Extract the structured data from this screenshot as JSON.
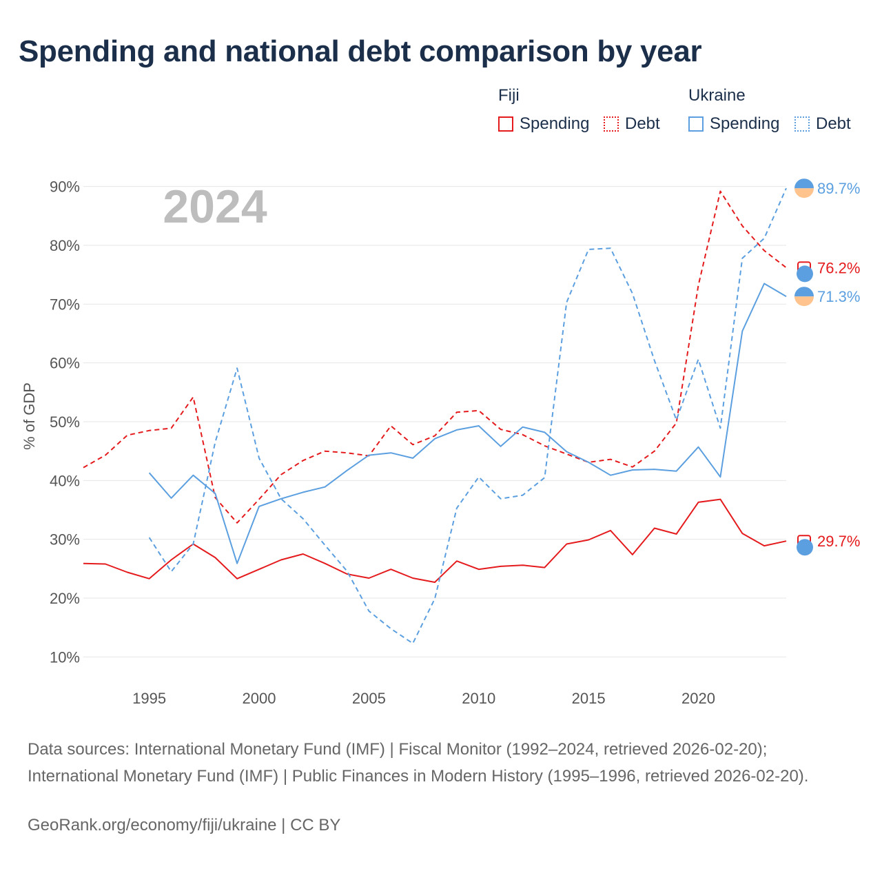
{
  "title": "Spending and national debt comparison by year",
  "legend": {
    "fiji": {
      "label": "Fiji",
      "spending": "Spending",
      "debt": "Debt",
      "color": "#e41a1c"
    },
    "ukraine": {
      "label": "Ukraine",
      "spending": "Spending",
      "debt": "Debt",
      "color": "#5b9fe0"
    }
  },
  "chart_data": {
    "type": "line",
    "year_label": "2024",
    "ylabel": "% of GDP",
    "ylim": [
      5,
      95
    ],
    "xlim": [
      1992,
      2024
    ],
    "yticks": [
      10,
      20,
      30,
      40,
      50,
      60,
      70,
      80,
      90
    ],
    "ytick_labels": [
      "10%",
      "20%",
      "30%",
      "40%",
      "50%",
      "60%",
      "70%",
      "80%",
      "90%"
    ],
    "xticks": [
      1995,
      2000,
      2005,
      2010,
      2015,
      2020
    ],
    "xtick_labels": [
      "1995",
      "2000",
      "2005",
      "2010",
      "2015",
      "2020"
    ],
    "series": [
      {
        "name": "Fiji Debt",
        "country": "Fiji",
        "metric": "Debt",
        "color": "#e41a1c",
        "dashed": true,
        "end_label": "76.2%",
        "end_value": 76.2,
        "x": [
          1992,
          1993,
          1994,
          1995,
          1996,
          1997,
          1998,
          1999,
          2000,
          2001,
          2002,
          2003,
          2004,
          2005,
          2006,
          2007,
          2008,
          2009,
          2010,
          2011,
          2012,
          2013,
          2014,
          2015,
          2016,
          2017,
          2018,
          2019,
          2020,
          2021,
          2022,
          2023,
          2024
        ],
        "y": [
          42.2,
          44.3,
          47.7,
          48.5,
          48.9,
          54.2,
          37.1,
          32.8,
          36.8,
          41.0,
          43.4,
          45.0,
          44.7,
          44.2,
          49.3,
          46.1,
          47.6,
          51.6,
          51.9,
          48.7,
          47.8,
          45.9,
          44.5,
          43.1,
          43.6,
          42.3,
          45.0,
          49.8,
          73.2,
          89.2,
          83.3,
          79.1,
          76.2
        ]
      },
      {
        "name": "Fiji Spending",
        "country": "Fiji",
        "metric": "Spending",
        "color": "#e41a1c",
        "dashed": false,
        "end_label": "29.7%",
        "end_value": 29.7,
        "x": [
          1992,
          1993,
          1994,
          1995,
          1996,
          1997,
          1998,
          1999,
          2000,
          2001,
          2002,
          2003,
          2004,
          2005,
          2006,
          2007,
          2008,
          2009,
          2010,
          2011,
          2012,
          2013,
          2014,
          2015,
          2016,
          2017,
          2018,
          2019,
          2020,
          2021,
          2022,
          2023,
          2024
        ],
        "y": [
          25.9,
          25.8,
          24.4,
          23.3,
          26.5,
          29.2,
          26.9,
          23.3,
          24.9,
          26.5,
          27.5,
          25.9,
          24.1,
          23.4,
          24.9,
          23.4,
          22.7,
          26.3,
          24.9,
          25.4,
          25.6,
          25.2,
          29.2,
          29.9,
          31.5,
          27.4,
          31.9,
          30.9,
          36.3,
          36.8,
          31.0,
          28.9,
          29.7
        ]
      },
      {
        "name": "Ukraine Debt",
        "country": "Ukraine",
        "metric": "Debt",
        "color": "#5b9fe0",
        "dashed": true,
        "end_label": "89.7%",
        "end_value": 89.7,
        "x": [
          1995,
          1996,
          1997,
          1998,
          1999,
          2000,
          2001,
          2002,
          2003,
          2004,
          2005,
          2006,
          2007,
          2008,
          2009,
          2010,
          2011,
          2012,
          2013,
          2014,
          2015,
          2016,
          2017,
          2018,
          2019,
          2020,
          2021,
          2022,
          2023,
          2024
        ],
        "y": [
          30.3,
          24.5,
          29.2,
          46.5,
          59.1,
          43.8,
          36.9,
          33.5,
          29.0,
          24.6,
          17.8,
          14.8,
          12.3,
          19.9,
          35.3,
          40.6,
          36.9,
          37.5,
          40.5,
          70.3,
          79.3,
          79.5,
          71.8,
          60.4,
          50.3,
          60.6,
          48.9,
          77.8,
          81.2,
          89.7
        ]
      },
      {
        "name": "Ukraine Spending",
        "country": "Ukraine",
        "metric": "Spending",
        "color": "#5b9fe0",
        "dashed": false,
        "end_label": "71.3%",
        "end_value": 71.3,
        "x": [
          1995,
          1996,
          1997,
          1998,
          1999,
          2000,
          2001,
          2002,
          2003,
          2004,
          2005,
          2006,
          2007,
          2008,
          2009,
          2010,
          2011,
          2012,
          2013,
          2014,
          2015,
          2016,
          2017,
          2018,
          2019,
          2020,
          2021,
          2022,
          2023,
          2024
        ],
        "y": [
          41.3,
          37.0,
          40.9,
          37.8,
          25.9,
          35.6,
          36.9,
          38.0,
          38.9,
          41.7,
          44.3,
          44.7,
          43.8,
          47.1,
          48.6,
          49.3,
          45.8,
          49.1,
          48.2,
          44.9,
          43.1,
          40.9,
          41.8,
          41.9,
          41.6,
          45.7,
          40.6,
          65.4,
          73.5,
          71.3
        ]
      }
    ]
  },
  "footer": {
    "sources": "Data sources: International Monetary Fund (IMF) | Fiscal Monitor (1992–2024, retrieved 2026-02-20); International Monetary Fund (IMF) | Public Finances in Modern History (1995–1996, retrieved 2026-02-20).",
    "credit": "GeoRank.org/economy/fiji/ukraine | CC BY"
  }
}
